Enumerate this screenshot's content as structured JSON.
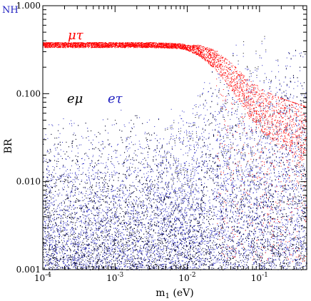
{
  "chart_data": {
    "type": "scatter",
    "corner_label": "NH",
    "xlabel": "m",
    "xlabel_subscript": "1",
    "xlabel_unit": " (eV)",
    "ylabel": "BR",
    "xscale": "log",
    "yscale": "log",
    "xlim": [
      0.0001,
      0.45
    ],
    "ylim": [
      0.001,
      1.0
    ],
    "x_ticks": [
      {
        "value": 0.0001,
        "base": "10",
        "exp": "-4"
      },
      {
        "value": 0.001,
        "base": "10",
        "exp": "-3"
      },
      {
        "value": 0.01,
        "base": "10",
        "exp": "-2"
      },
      {
        "value": 0.1,
        "base": "10",
        "exp": "-1"
      }
    ],
    "y_ticks": [
      {
        "value": 0.001,
        "label": "0.001"
      },
      {
        "value": 0.01,
        "label": "0.010"
      },
      {
        "value": 0.1,
        "label": "0.100"
      },
      {
        "value": 1.0,
        "label": "1.000"
      }
    ],
    "grid": false,
    "legend": "in-plot labels",
    "series": [
      {
        "name": "eμ",
        "color": "#000000",
        "description_points": [
          [
            0.0001,
            0.06
          ],
          [
            0.001,
            0.06
          ],
          [
            0.01,
            0.08
          ],
          [
            0.03,
            0.2
          ],
          [
            0.1,
            0.2
          ],
          [
            0.45,
            0.2
          ]
        ],
        "band_upper": [
          [
            0.0001,
            0.06
          ],
          [
            0.003,
            0.07
          ],
          [
            0.01,
            0.09
          ],
          [
            0.02,
            0.2
          ],
          [
            0.05,
            0.5
          ],
          [
            0.45,
            0.5
          ]
        ],
        "band_lower": [
          [
            0.0001,
            0.001
          ],
          [
            0.45,
            0.001
          ]
        ]
      },
      {
        "name": "eτ",
        "color": "#2020c0",
        "band_upper": [
          [
            0.0001,
            0.06
          ],
          [
            0.003,
            0.07
          ],
          [
            0.01,
            0.1
          ],
          [
            0.02,
            0.2
          ],
          [
            0.04,
            0.45
          ],
          [
            0.45,
            0.5
          ]
        ],
        "band_lower": [
          [
            0.0001,
            0.001
          ],
          [
            0.45,
            0.001
          ]
        ]
      },
      {
        "name": "μτ",
        "color": "#ff0000",
        "band_center": [
          [
            0.0001,
            0.36
          ],
          [
            0.003,
            0.36
          ],
          [
            0.008,
            0.35
          ],
          [
            0.015,
            0.31
          ],
          [
            0.025,
            0.24
          ],
          [
            0.04,
            0.16
          ],
          [
            0.07,
            0.09
          ],
          [
            0.12,
            0.06
          ],
          [
            0.2,
            0.05
          ],
          [
            0.45,
            0.04
          ]
        ],
        "plateau_value": 0.36
      }
    ]
  }
}
